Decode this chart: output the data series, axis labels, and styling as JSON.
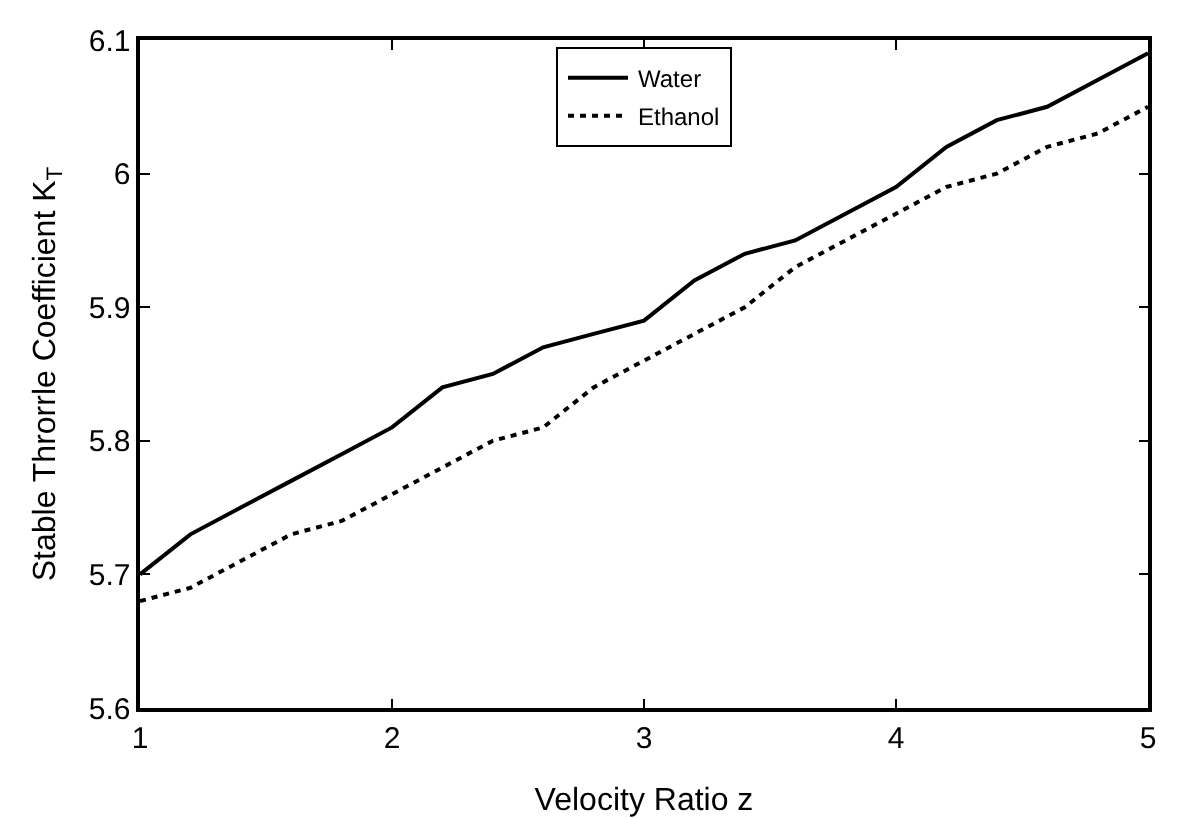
{
  "chart_data": {
    "type": "line",
    "xlabel": "Velocity Ratio z",
    "ylabel": "Stable Throrrle Coefficient K$_{T}$",
    "x": [
      1,
      1.2,
      1.4,
      1.6,
      1.8,
      2,
      2.2,
      2.4,
      2.6,
      2.8,
      3,
      3.2,
      3.4,
      3.6,
      3.8,
      4,
      4.2,
      4.4,
      4.6,
      4.8,
      5
    ],
    "series": [
      {
        "name": "Water",
        "color": "#000000",
        "line_style": "solid",
        "values": [
          5.7,
          5.73,
          5.75,
          5.77,
          5.79,
          5.81,
          5.84,
          5.85,
          5.87,
          5.88,
          5.89,
          5.92,
          5.94,
          5.95,
          5.97,
          5.99,
          6.02,
          6.04,
          6.05,
          6.07,
          6.09
        ]
      },
      {
        "name": "Ethanol",
        "color": "#000000",
        "line_style": "dotted",
        "values": [
          5.68,
          5.69,
          5.71,
          5.73,
          5.74,
          5.76,
          5.78,
          5.8,
          5.81,
          5.84,
          5.86,
          5.88,
          5.9,
          5.93,
          5.95,
          5.97,
          5.99,
          6.0,
          6.02,
          6.03,
          6.05
        ]
      }
    ],
    "xlim": [
      1,
      5
    ],
    "xticks": [
      1,
      2,
      3,
      4,
      5
    ],
    "ylim": [
      5.6,
      6.1
    ],
    "yticks": [
      5.6,
      5.7,
      5.8,
      5.9,
      6,
      6.1
    ],
    "grid": false,
    "legend": "top",
    "marker": "none"
  }
}
